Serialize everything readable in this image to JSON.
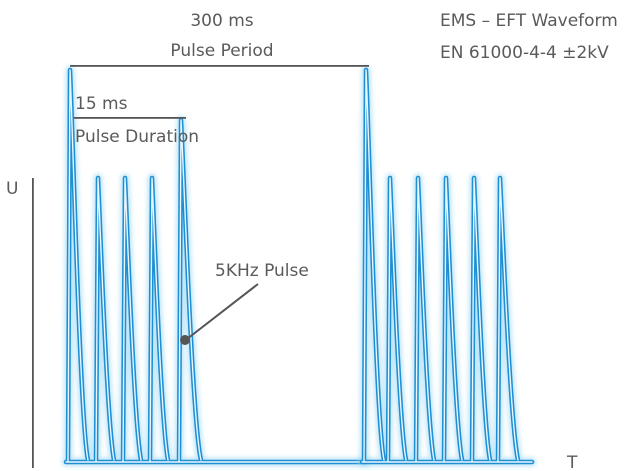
{
  "diagram": {
    "period_value": "300 ms",
    "period_label": "Pulse Period",
    "title_line1": "EMS – EFT Waveform",
    "title_line2": "EN 61000-4-4 ±2kV",
    "duration_value": "15 ms",
    "duration_label": "Pulse Duration",
    "pulse_label": "5KHz Pulse",
    "axis_y": "U",
    "axis_x": "T"
  },
  "colors": {
    "waveform": "#1e8fd2",
    "glow": "#8fd3f2",
    "inner": "#e9f7ff",
    "text": "#5a5a5a",
    "lines": "#555555"
  }
}
